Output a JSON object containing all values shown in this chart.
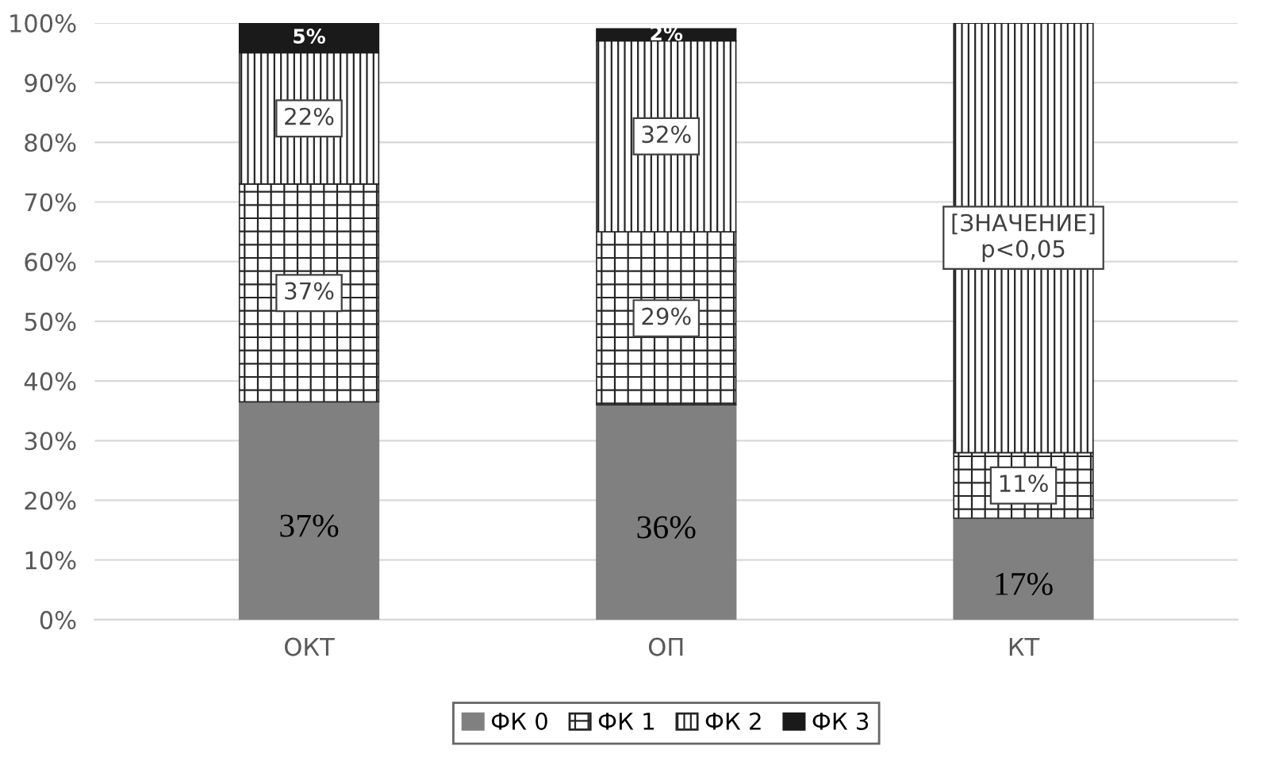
{
  "chart_data": {
    "type": "bar",
    "stacked": true,
    "categories": [
      "ОКТ",
      "ОП",
      "КТ"
    ],
    "series": [
      {
        "name": "ФК 0",
        "color": "#808080",
        "values": [
          36.5,
          36,
          17
        ],
        "value_labels": [
          "37%",
          "36%",
          "17%"
        ]
      },
      {
        "name": "ФК 1",
        "color": "#262626",
        "values": [
          36.5,
          29,
          11
        ],
        "value_labels": [
          "37%",
          "29%",
          "11%"
        ]
      },
      {
        "name": "ФК 2",
        "color": "#262626",
        "values": [
          22,
          32,
          72
        ],
        "value_labels": [
          "22%",
          "32%",
          "[ЗНАЧЕНИЕ]\np<0,05"
        ]
      },
      {
        "name": "ФК 3",
        "color": "#1a1a1a",
        "values": [
          5,
          2,
          0
        ],
        "value_labels": [
          "5%",
          "2%",
          null
        ]
      }
    ],
    "ylim": [
      0,
      100
    ],
    "yticks": [
      {
        "value": 0,
        "label": "0%"
      },
      {
        "value": 10,
        "label": "10%"
      },
      {
        "value": 20,
        "label": "20%"
      },
      {
        "value": 30,
        "label": "30%"
      },
      {
        "value": 40,
        "label": "40%"
      },
      {
        "value": 50,
        "label": "50%"
      },
      {
        "value": 60,
        "label": "60%"
      },
      {
        "value": 70,
        "label": "70%"
      },
      {
        "value": 80,
        "label": "80%"
      },
      {
        "value": 90,
        "label": "90%"
      },
      {
        "value": 100,
        "label": "100%"
      }
    ],
    "grid": "y",
    "legend": "bottom"
  }
}
